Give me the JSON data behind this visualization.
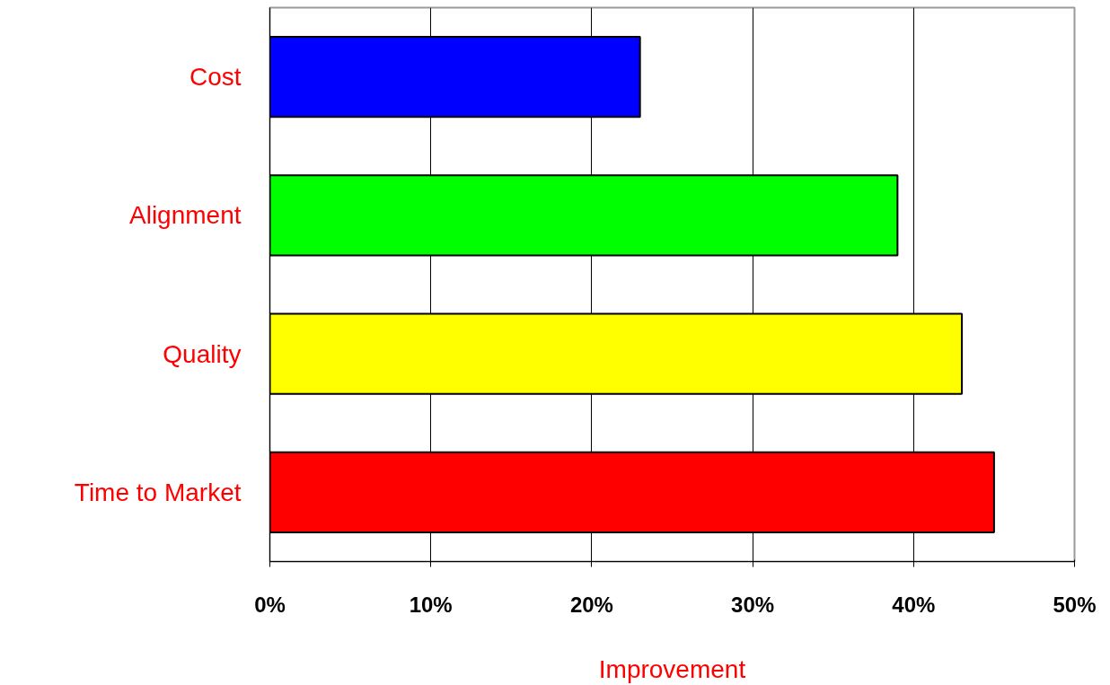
{
  "chart_data": {
    "type": "bar",
    "orientation": "horizontal",
    "xlabel": "Improvement",
    "categories": [
      "Cost",
      "Alignment",
      "Quality",
      "Time to Market"
    ],
    "values": [
      23,
      39,
      43,
      45
    ],
    "colors": [
      "#0000ff",
      "#00ff00",
      "#ffff00",
      "#ff0000"
    ],
    "xlim": [
      0,
      50
    ],
    "xticks": [
      {
        "value": 0,
        "label": "0%"
      },
      {
        "value": 10,
        "label": "10%"
      },
      {
        "value": 20,
        "label": "20%"
      },
      {
        "value": 30,
        "label": "30%"
      },
      {
        "value": 40,
        "label": "40%"
      },
      {
        "value": 50,
        "label": "50%"
      }
    ],
    "grid": "x"
  }
}
